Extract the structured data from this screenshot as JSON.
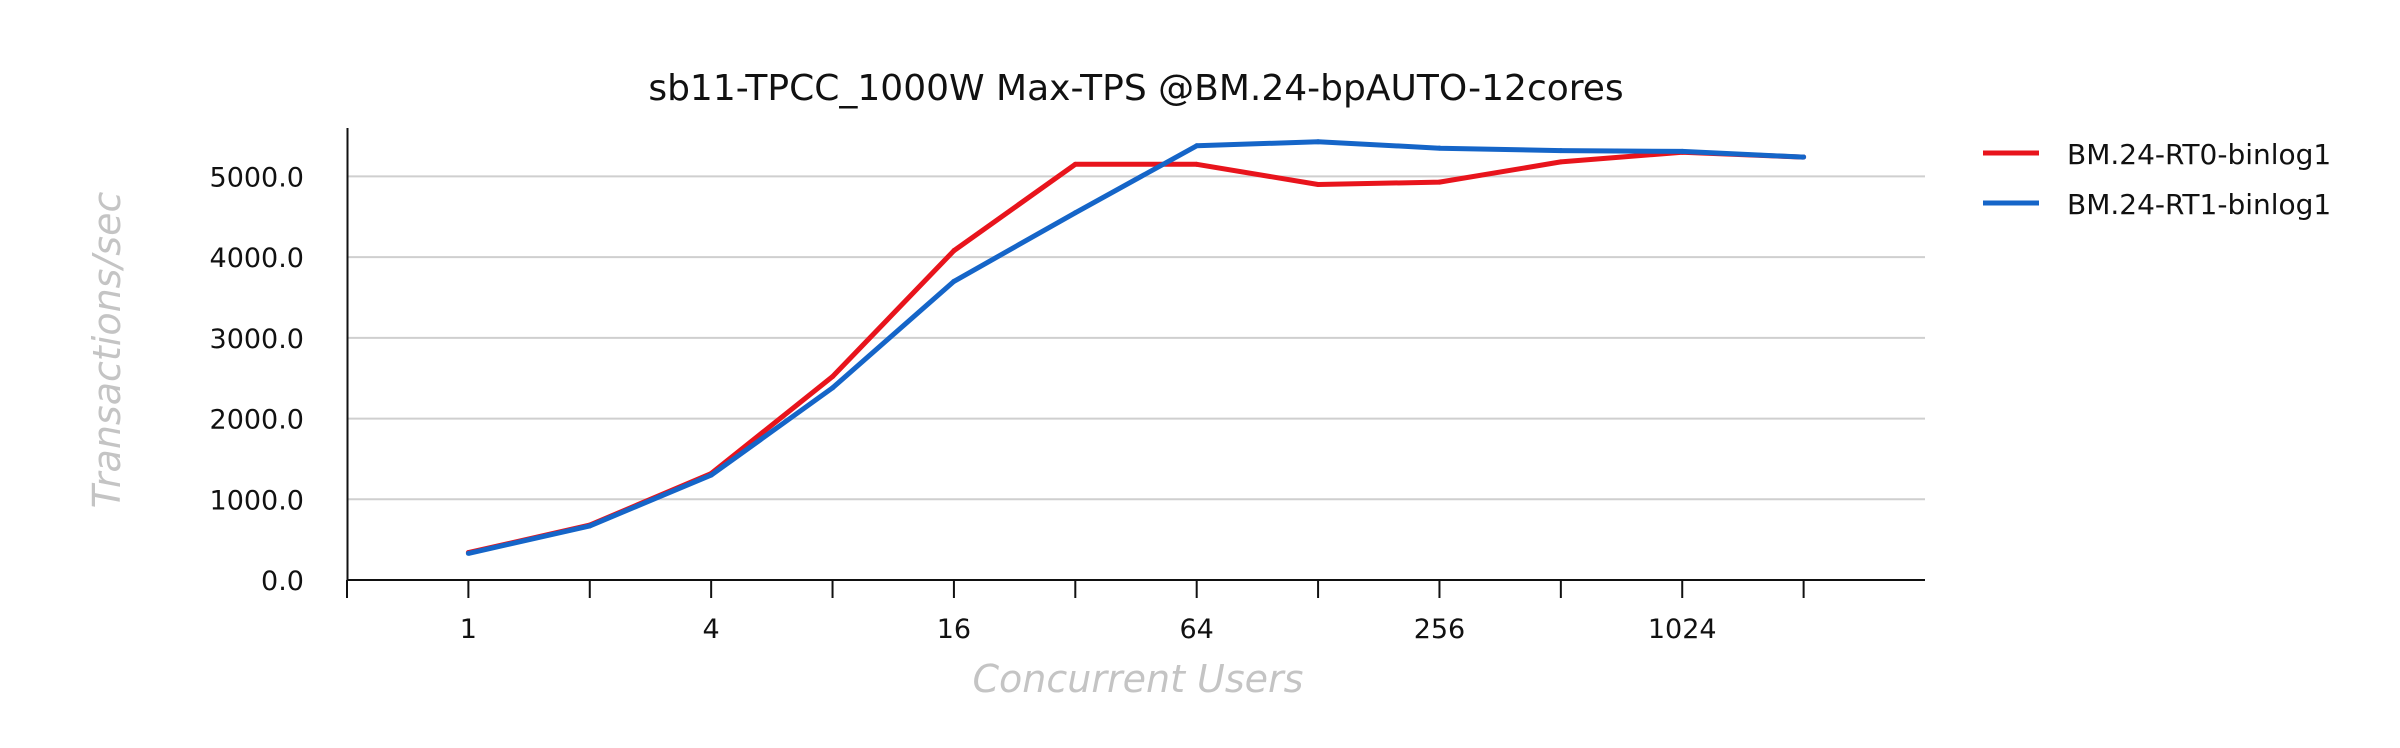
{
  "chart_data": {
    "type": "line",
    "title": "sb11-TPCC_1000W Max-TPS @BM.24-bpAUTO-12cores",
    "xlabel": "Concurrent Users",
    "ylabel": "Transactions/sec",
    "x_scale": "log2",
    "x": [
      1,
      2,
      4,
      8,
      16,
      32,
      64,
      128,
      256,
      512,
      1024,
      2048
    ],
    "x_tick_labels": [
      "1",
      "4",
      "16",
      "64",
      "256",
      "1024"
    ],
    "x_tick_values": [
      1,
      4,
      16,
      64,
      256,
      1024
    ],
    "y_tick_labels": [
      "0.0",
      "1000.0",
      "2000.0",
      "3000.0",
      "4000.0",
      "5000.0"
    ],
    "y_tick_values": [
      0,
      1000,
      2000,
      3000,
      4000,
      5000
    ],
    "ylim": [
      0,
      5600
    ],
    "xlim_log2": [
      -1,
      12
    ],
    "grid": "horizontal",
    "legend_position": "right",
    "series": [
      {
        "name": "BM.24-RT0-binlog1",
        "color": "#e8141c",
        "values": [
          340,
          680,
          1320,
          2520,
          4080,
          5150,
          5150,
          4900,
          4930,
          5180,
          5300,
          5240
        ]
      },
      {
        "name": "BM.24-RT1-binlog1",
        "color": "#1565c8",
        "values": [
          330,
          670,
          1300,
          2380,
          3700,
          4550,
          5380,
          5430,
          5350,
          5320,
          5310,
          5240
        ]
      }
    ]
  }
}
